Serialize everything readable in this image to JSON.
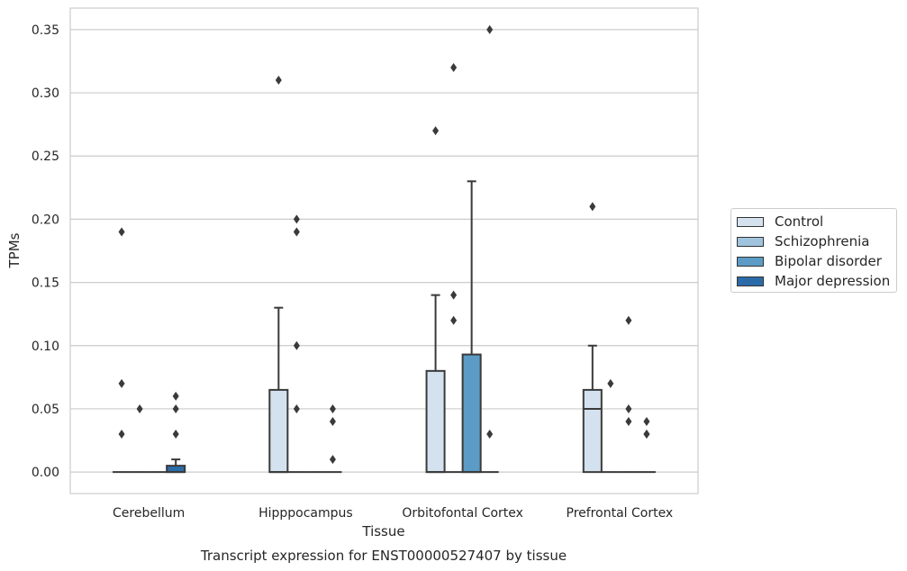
{
  "chart_data": {
    "type": "box",
    "title": "Transcript expression for ENST00000527407 by tissue",
    "xlabel": "Tissue",
    "ylabel": "TPMs",
    "ylim": [
      -0.017,
      0.367
    ],
    "yticks": [
      0.0,
      0.05,
      0.1,
      0.15,
      0.2,
      0.25,
      0.3,
      0.35
    ],
    "ytick_labels": [
      "0.00",
      "0.05",
      "0.10",
      "0.15",
      "0.20",
      "0.25",
      "0.30",
      "0.35"
    ],
    "grid": "horizontal",
    "legend_position": "right",
    "categories": [
      "Cerebellum",
      "Hipppocampus",
      "Orbitofontal Cortex",
      "Prefrontal Cortex"
    ],
    "series": [
      {
        "name": "Control",
        "color": "#d4e2f0",
        "boxes": [
          {
            "q1": 0.0,
            "median": 0.0,
            "q3": 0.0,
            "whisker_low": 0.0,
            "whisker_high": 0.0,
            "outliers": [
              0.19,
              0.07,
              0.03
            ]
          },
          {
            "q1": 0.0,
            "median": 0.0,
            "q3": 0.065,
            "whisker_low": 0.0,
            "whisker_high": 0.13,
            "outliers": [
              0.31
            ]
          },
          {
            "q1": 0.0,
            "median": 0.0,
            "q3": 0.08,
            "whisker_low": 0.0,
            "whisker_high": 0.14,
            "outliers": [
              0.27
            ]
          },
          {
            "q1": 0.0,
            "median": 0.05,
            "q3": 0.065,
            "whisker_low": 0.0,
            "whisker_high": 0.1,
            "outliers": [
              0.21
            ]
          }
        ]
      },
      {
        "name": "Schizophrenia",
        "color": "#a0c4de",
        "boxes": [
          {
            "q1": 0.0,
            "median": 0.0,
            "q3": 0.0,
            "whisker_low": 0.0,
            "whisker_high": 0.0,
            "outliers": [
              0.05
            ]
          },
          {
            "q1": 0.0,
            "median": 0.0,
            "q3": 0.0,
            "whisker_low": 0.0,
            "whisker_high": 0.0,
            "outliers": [
              0.2,
              0.19,
              0.1,
              0.05
            ]
          },
          {
            "q1": 0.0,
            "median": 0.0,
            "q3": 0.0,
            "whisker_low": 0.0,
            "whisker_high": 0.0,
            "outliers": [
              0.32,
              0.14,
              0.12
            ]
          },
          {
            "q1": 0.0,
            "median": 0.0,
            "q3": 0.0,
            "whisker_low": 0.0,
            "whisker_high": 0.0,
            "outliers": [
              0.07
            ]
          }
        ]
      },
      {
        "name": "Bipolar disorder",
        "color": "#5b9bc6",
        "boxes": [
          {
            "q1": 0.0,
            "median": 0.0,
            "q3": 0.0,
            "whisker_low": 0.0,
            "whisker_high": 0.0,
            "outliers": []
          },
          {
            "q1": 0.0,
            "median": 0.0,
            "q3": 0.0,
            "whisker_low": 0.0,
            "whisker_high": 0.0,
            "outliers": []
          },
          {
            "q1": 0.0,
            "median": 0.0,
            "q3": 0.093,
            "whisker_low": 0.0,
            "whisker_high": 0.23,
            "outliers": []
          },
          {
            "q1": 0.0,
            "median": 0.0,
            "q3": 0.0,
            "whisker_low": 0.0,
            "whisker_high": 0.0,
            "outliers": [
              0.12,
              0.05,
              0.04
            ]
          }
        ]
      },
      {
        "name": "Major depression",
        "color": "#2b6ca8",
        "boxes": [
          {
            "q1": 0.0,
            "median": 0.0,
            "q3": 0.005,
            "whisker_low": 0.0,
            "whisker_high": 0.01,
            "outliers": [
              0.06,
              0.05,
              0.03
            ]
          },
          {
            "q1": 0.0,
            "median": 0.0,
            "q3": 0.0,
            "whisker_low": 0.0,
            "whisker_high": 0.0,
            "outliers": [
              0.05,
              0.04,
              0.01
            ]
          },
          {
            "q1": 0.0,
            "median": 0.0,
            "q3": 0.0,
            "whisker_low": 0.0,
            "whisker_high": 0.0,
            "outliers": [
              0.35,
              0.03
            ]
          },
          {
            "q1": 0.0,
            "median": 0.0,
            "q3": 0.0,
            "whisker_low": 0.0,
            "whisker_high": 0.0,
            "outliers": [
              0.04,
              0.03,
              0.03
            ]
          }
        ]
      }
    ]
  }
}
